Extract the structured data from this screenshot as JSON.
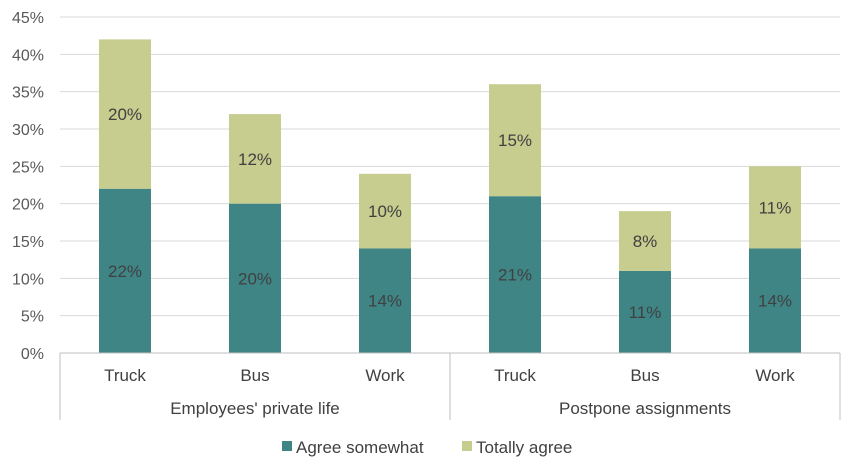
{
  "colors": {
    "agree_somewhat": "#3f8585",
    "totally_agree": "#c7cd8f",
    "grid": "#d9d9d9",
    "axis": "#bfbfbf"
  },
  "chart_data": {
    "type": "bar",
    "stacked": true,
    "title": "",
    "xlabel": "",
    "ylabel": "",
    "ylim": [
      0,
      45
    ],
    "yticks": [
      "0%",
      "5%",
      "10%",
      "15%",
      "20%",
      "25%",
      "30%",
      "35%",
      "40%",
      "45%"
    ],
    "grid": true,
    "legend_position": "bottom",
    "groups": [
      {
        "label": "Employees' private life",
        "categories": [
          "Truck",
          "Bus",
          "Work"
        ]
      },
      {
        "label": "Postpone assignments",
        "categories": [
          "Truck",
          "Bus",
          "Work"
        ]
      }
    ],
    "categories": [
      "Truck",
      "Bus",
      "Work",
      "Truck",
      "Bus",
      "Work"
    ],
    "series": [
      {
        "name": "Agree somewhat",
        "values": [
          22,
          20,
          14,
          21,
          11,
          14
        ],
        "labels": [
          "22%",
          "20%",
          "14%",
          "21%",
          "11%",
          "14%"
        ]
      },
      {
        "name": "Totally agree",
        "values": [
          20,
          12,
          10,
          15,
          8,
          11
        ],
        "labels": [
          "20%",
          "12%",
          "10%",
          "15%",
          "8%",
          "11%"
        ]
      }
    ]
  }
}
